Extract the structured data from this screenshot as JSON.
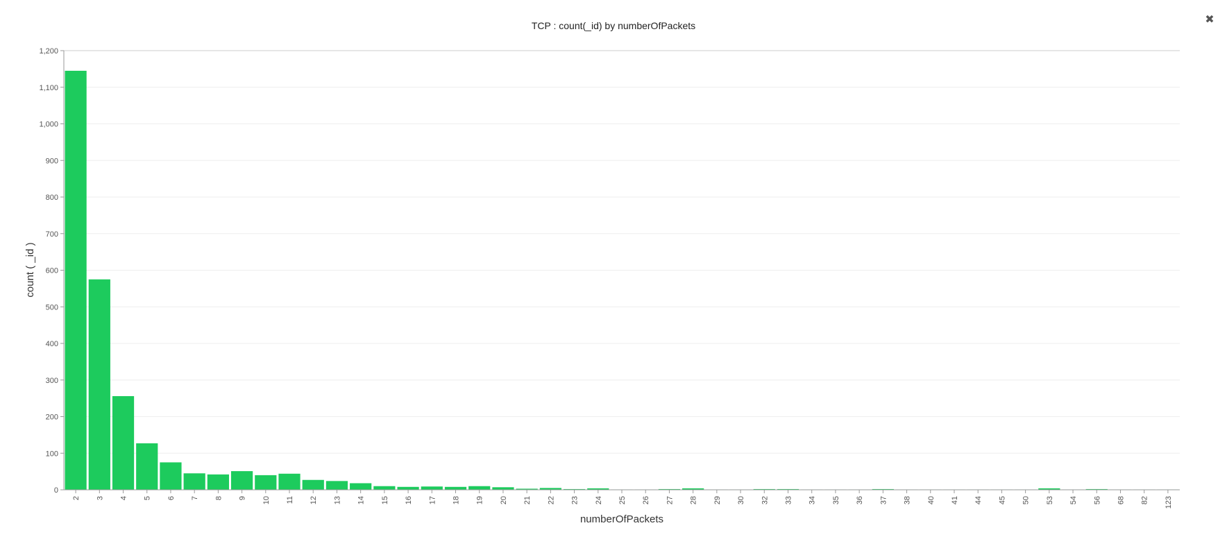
{
  "window": {
    "close_icon": "close-icon",
    "close_glyph": "✖"
  },
  "chart_data": {
    "type": "bar",
    "title": "TCP : count(_id) by numberOfPackets",
    "xlabel": "numberOfPackets",
    "ylabel": "count ( _id )",
    "ylim": [
      0,
      1200
    ],
    "yticks": [
      0,
      100,
      200,
      300,
      400,
      500,
      600,
      700,
      800,
      900,
      1000,
      1100,
      1200
    ],
    "ytick_labels": [
      "0",
      "100",
      "200",
      "300",
      "400",
      "500",
      "600",
      "700",
      "800",
      "900",
      "1,000",
      "1,100",
      "1,200"
    ],
    "grid": true,
    "bar_color": "#1dcb5d",
    "categories": [
      "2",
      "3",
      "4",
      "5",
      "6",
      "7",
      "8",
      "9",
      "10",
      "11",
      "12",
      "13",
      "14",
      "15",
      "16",
      "17",
      "18",
      "19",
      "20",
      "21",
      "22",
      "23",
      "24",
      "25",
      "26",
      "27",
      "28",
      "29",
      "30",
      "32",
      "33",
      "34",
      "35",
      "36",
      "37",
      "38",
      "40",
      "41",
      "44",
      "45",
      "50",
      "53",
      "54",
      "56",
      "68",
      "82",
      "123"
    ],
    "values": [
      1145,
      575,
      256,
      127,
      75,
      45,
      42,
      51,
      40,
      44,
      27,
      24,
      18,
      10,
      8,
      9,
      8,
      10,
      7,
      3,
      5,
      2,
      4,
      1,
      1,
      2,
      4,
      1,
      1,
      2,
      2,
      1,
      1,
      1,
      2,
      1,
      1,
      1,
      1,
      1,
      1,
      4,
      1,
      2,
      1,
      1,
      1
    ]
  }
}
